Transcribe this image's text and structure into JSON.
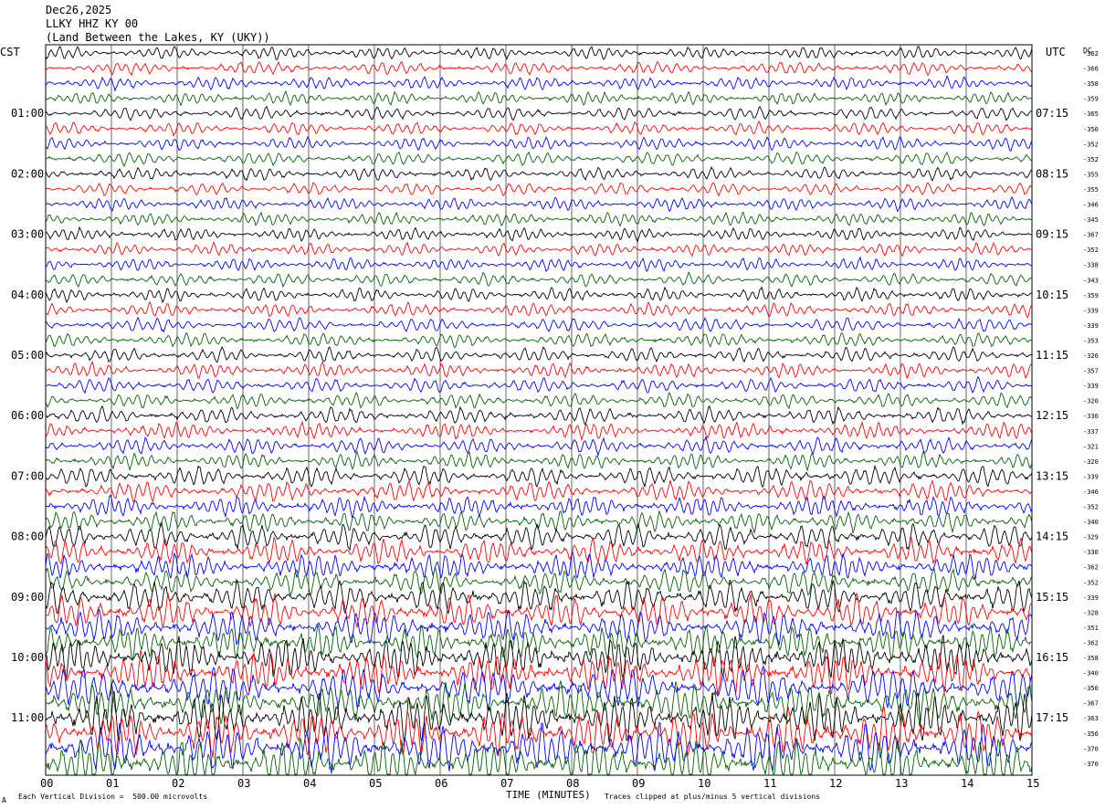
{
  "header": {
    "date": "Dec26,2025",
    "station": "LLKY HHZ KY 00",
    "location": "(Land Between the Lakes, KY (UKY))"
  },
  "left_zone": "CST",
  "right_zone": "UTC",
  "dc_label": "DC",
  "xlabel": "TIME (MINUTES)",
  "footer": {
    "scale_note": "Each Vertical Division =  500.00 microvolts",
    "clip_note": "Traces clipped at plus/minus 5 vertical divisions",
    "corner_mark": "A"
  },
  "chart_data": {
    "type": "line",
    "title": "LLKY HHZ KY 00",
    "xlabel": "TIME (MINUTES)",
    "x_ticks": [
      "00",
      "01",
      "02",
      "03",
      "04",
      "05",
      "06",
      "07",
      "08",
      "09",
      "10",
      "11",
      "12",
      "13",
      "14",
      "15"
    ],
    "xlim": [
      0,
      15
    ],
    "trace_count": 48,
    "trace_colors": [
      "#000000",
      "#ff0000",
      "#0000ff",
      "#006400"
    ],
    "left_time_labels": [
      "01:00",
      "02:00",
      "03:00",
      "04:00",
      "05:00",
      "06:00",
      "07:00",
      "08:00",
      "09:00",
      "10:00",
      "11:00"
    ],
    "right_time_labels": [
      "07:15",
      "08:15",
      "09:15",
      "10:15",
      "11:15",
      "12:15",
      "13:15",
      "14:15",
      "15:15",
      "16:15",
      "17:15"
    ],
    "dc_offsets": [
      "-362",
      "-366",
      "-358",
      "-359",
      "-365",
      "-350",
      "-352",
      "-352",
      "-355",
      "-355",
      "-346",
      "-345",
      "-367",
      "-352",
      "-338",
      "-343",
      "-359",
      "-339",
      "-339",
      "-353",
      "-326",
      "-357",
      "-339",
      "-320",
      "-330",
      "-337",
      "-321",
      "-320",
      "-339",
      "-346",
      "-352",
      "-340",
      "-329",
      "-330",
      "-362",
      "-352",
      "-339",
      "-328",
      "-351",
      "-362",
      "-358",
      "-340",
      "-350",
      "-367",
      "-363",
      "-356",
      "-370",
      "-370"
    ],
    "amplitude_by_hour": [
      7,
      7,
      7,
      7,
      7.5,
      8,
      9,
      11,
      14,
      18,
      22,
      26
    ],
    "clip_level_divisions": 5,
    "scale_microvolts_per_division": 500.0
  }
}
